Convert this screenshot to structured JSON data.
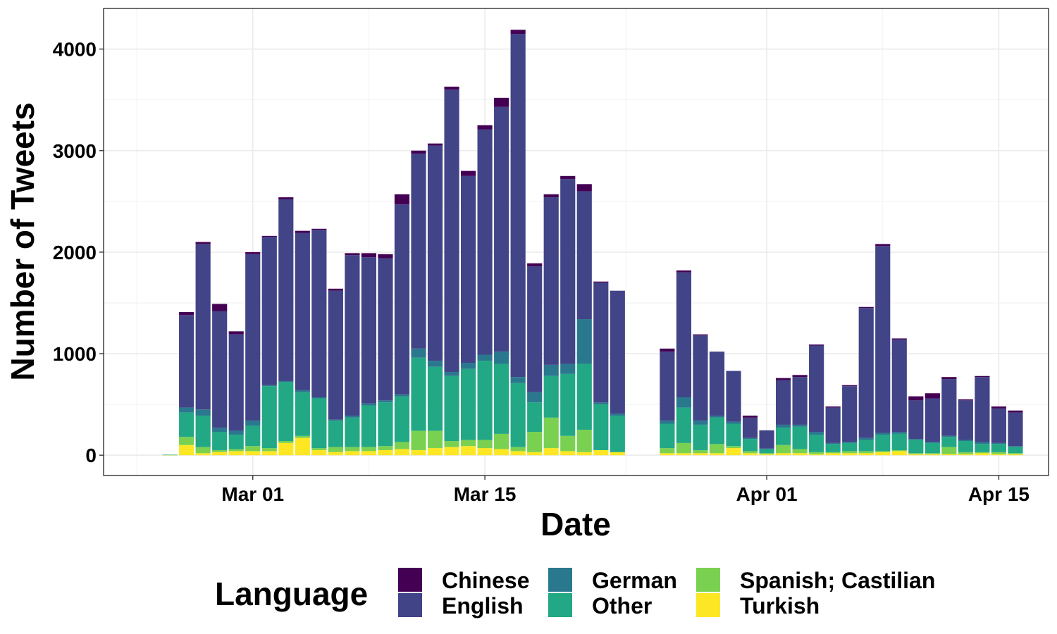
{
  "chart_data": {
    "type": "bar",
    "stacked": true,
    "title": "",
    "xlabel": "Date",
    "ylabel": "Number of Tweets",
    "ylim": [
      -200,
      4400
    ],
    "xlim": [
      "2020-02-21",
      "2020-04-18"
    ],
    "grid": true,
    "legend_position": "bottom",
    "legend_title": "Language",
    "x_ticks": [
      {
        "date": "2020-03-01",
        "label": "Mar 01"
      },
      {
        "date": "2020-03-15",
        "label": "Mar 15"
      },
      {
        "date": "2020-04-01",
        "label": "Apr 01"
      },
      {
        "date": "2020-04-15",
        "label": "Apr 15"
      }
    ],
    "y_ticks": [
      0,
      1000,
      2000,
      3000,
      4000
    ],
    "dates": [
      "2020-02-25",
      "2020-02-26",
      "2020-02-27",
      "2020-02-28",
      "2020-02-29",
      "2020-03-01",
      "2020-03-02",
      "2020-03-03",
      "2020-03-04",
      "2020-03-05",
      "2020-03-06",
      "2020-03-07",
      "2020-03-08",
      "2020-03-09",
      "2020-03-10",
      "2020-03-11",
      "2020-03-12",
      "2020-03-13",
      "2020-03-14",
      "2020-03-15",
      "2020-03-16",
      "2020-03-17",
      "2020-03-18",
      "2020-03-19",
      "2020-03-20",
      "2020-03-21",
      "2020-03-22",
      "2020-03-23",
      "2020-03-24",
      "2020-03-25",
      "2020-03-26",
      "2020-03-27",
      "2020-03-28",
      "2020-03-29",
      "2020-03-30",
      "2020-03-31",
      "2020-04-01",
      "2020-04-02",
      "2020-04-03",
      "2020-04-04",
      "2020-04-05",
      "2020-04-06",
      "2020-04-07",
      "2020-04-08",
      "2020-04-09",
      "2020-04-10",
      "2020-04-11",
      "2020-04-12",
      "2020-04-13",
      "2020-04-14",
      "2020-04-15",
      "2020-04-16"
    ],
    "series": [
      {
        "name": "Turkish",
        "color": "#FDE725",
        "values": [
          2,
          100,
          20,
          30,
          40,
          40,
          40,
          120,
          170,
          50,
          30,
          40,
          40,
          50,
          60,
          50,
          70,
          80,
          90,
          70,
          60,
          40,
          30,
          70,
          40,
          30,
          50,
          30,
          0,
          0,
          20,
          20,
          20,
          20,
          70,
          20,
          10,
          20,
          20,
          10,
          20,
          20,
          20,
          30,
          40,
          10,
          10,
          10,
          10,
          20,
          10,
          10
        ]
      },
      {
        "name": "Spanish; Castilian",
        "color": "#7AD151",
        "values": [
          1,
          80,
          60,
          20,
          20,
          50,
          30,
          20,
          20,
          20,
          50,
          40,
          40,
          40,
          70,
          190,
          170,
          60,
          60,
          80,
          150,
          40,
          200,
          300,
          150,
          220,
          0,
          0,
          0,
          0,
          50,
          100,
          30,
          90,
          20,
          20,
          10,
          80,
          40,
          20,
          10,
          20,
          20,
          10,
          10,
          10,
          10,
          70,
          20,
          10,
          20,
          10
        ]
      },
      {
        "name": "Other",
        "color": "#22A884",
        "values": [
          2,
          240,
          310,
          180,
          140,
          200,
          610,
          580,
          430,
          490,
          260,
          290,
          410,
          430,
          450,
          720,
          630,
          640,
          700,
          780,
          690,
          630,
          290,
          410,
          610,
          650,
          450,
          360,
          0,
          0,
          240,
          350,
          250,
          260,
          220,
          120,
          40,
          170,
          220,
          170,
          80,
          80,
          110,
          160,
          160,
          130,
          100,
          100,
          110,
          80,
          80,
          60
        ]
      },
      {
        "name": "German",
        "color": "#2A788E",
        "values": [
          0,
          50,
          60,
          40,
          40,
          50,
          10,
          10,
          20,
          10,
          10,
          20,
          20,
          20,
          20,
          90,
          60,
          40,
          60,
          60,
          120,
          60,
          100,
          110,
          100,
          440,
          20,
          20,
          0,
          0,
          30,
          100,
          40,
          20,
          20,
          10,
          5,
          30,
          20,
          30,
          10,
          10,
          20,
          20,
          20,
          10,
          10,
          10,
          10,
          20,
          10,
          10
        ]
      },
      {
        "name": "English",
        "color": "#414487",
        "values": [
          0,
          910,
          1630,
          1150,
          950,
          1640,
          1460,
          1790,
          1550,
          1650,
          1270,
          1580,
          1440,
          1400,
          1870,
          1920,
          2120,
          2780,
          1840,
          2220,
          2410,
          3380,
          1240,
          1650,
          1820,
          1260,
          1180,
          1210,
          0,
          0,
          680,
          1230,
          840,
          630,
          500,
          200,
          180,
          440,
          470,
          850,
          350,
          550,
          1280,
          1840,
          910,
          380,
          430,
          560,
          390,
          640,
          340,
          330
        ]
      },
      {
        "name": "Chinese",
        "color": "#440154",
        "values": [
          0,
          30,
          20,
          70,
          30,
          20,
          10,
          20,
          20,
          10,
          20,
          20,
          40,
          40,
          100,
          30,
          20,
          30,
          50,
          40,
          90,
          40,
          30,
          30,
          30,
          70,
          10,
          0,
          0,
          0,
          30,
          20,
          10,
          0,
          0,
          20,
          0,
          20,
          20,
          10,
          10,
          10,
          10,
          20,
          10,
          40,
          50,
          20,
          10,
          10,
          20,
          20
        ]
      }
    ]
  }
}
